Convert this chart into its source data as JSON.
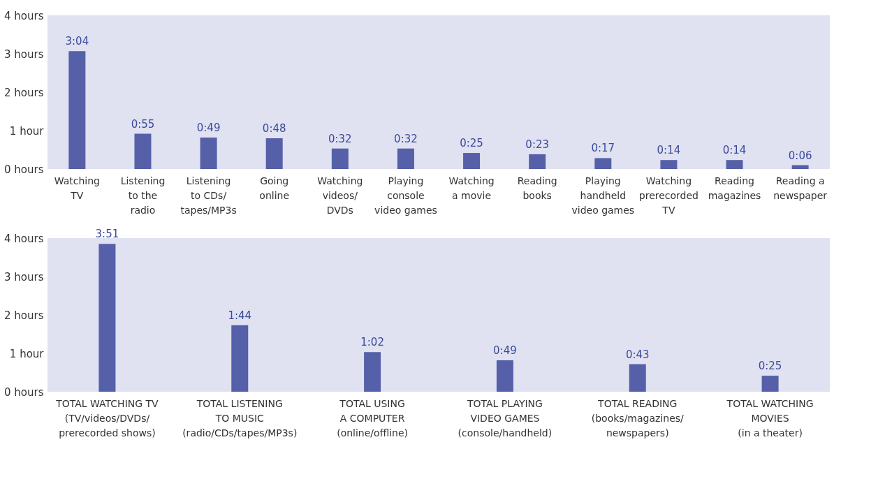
{
  "chart_data": [
    {
      "type": "bar",
      "categories": [
        "Watching\nTV",
        "Listening\nto the\nradio",
        "Listening\nto CDs/\ntapes/MP3s",
        "Going\nonline",
        "Watching\nvideos/\nDVDs",
        "Playing\nconsole\nvideo games",
        "Watching\na movie",
        "Reading\nbooks",
        "Playing\nhandheld\nvideo games",
        "Watching\nprerecorded\nTV",
        "Reading\nmagazines",
        "Reading a\nnewspaper"
      ],
      "values": [
        3.067,
        0.917,
        0.817,
        0.8,
        0.533,
        0.533,
        0.417,
        0.383,
        0.283,
        0.233,
        0.233,
        0.1
      ],
      "value_labels": [
        "3:04",
        "0:55",
        "0:49",
        "0:48",
        "0:32",
        "0:32",
        "0:25",
        "0:23",
        "0:17",
        "0:14",
        "0:14",
        "0:06"
      ],
      "color": "#5560a8",
      "ylim": [
        0,
        4
      ],
      "yticks": [
        {
          "value": 0,
          "label": "0 hours"
        },
        {
          "value": 1,
          "label": "1 hour"
        },
        {
          "value": 2,
          "label": "2 hours"
        },
        {
          "value": 3,
          "label": "3 hours"
        },
        {
          "value": 4,
          "label": "4 hours"
        }
      ],
      "grid": false
    },
    {
      "type": "bar",
      "categories": [
        "TOTAL WATCHING TV\n(TV/videos/DVDs/\nprerecorded shows)",
        "TOTAL LISTENING\nTO MUSIC\n(radio/CDs/tapes/MP3s)",
        "TOTAL USING\nA COMPUTER\n(online/offline)",
        "TOTAL PLAYING\nVIDEO GAMES\n(console/handheld)",
        "TOTAL READING\n(books/magazines/\nnewspapers)",
        "TOTAL WATCHING\nMOVIES\n(in a theater)"
      ],
      "values": [
        3.85,
        1.733,
        1.033,
        0.817,
        0.717,
        0.417
      ],
      "value_labels": [
        "3:51",
        "1:44",
        "1:02",
        "0:49",
        "0:43",
        "0:25"
      ],
      "color": "#5560a8",
      "ylim": [
        0,
        4
      ],
      "yticks": [
        {
          "value": 0,
          "label": "0 hours"
        },
        {
          "value": 1,
          "label": "1 hour"
        },
        {
          "value": 2,
          "label": "2 hours"
        },
        {
          "value": 3,
          "label": "3 hours"
        },
        {
          "value": 4,
          "label": "4 hours"
        }
      ],
      "grid": false
    }
  ]
}
